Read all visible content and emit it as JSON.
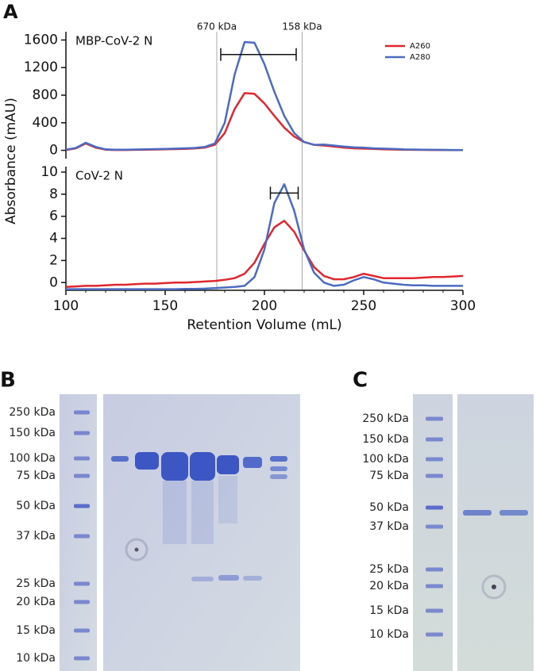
{
  "panels": [
    "A",
    "B",
    "C"
  ],
  "chart_data": [
    {
      "type": "line",
      "title": "MBP-CoV-2 N",
      "ylabel": "Absorbance (mAU)",
      "x": [
        100,
        105,
        110,
        115,
        120,
        125,
        130,
        135,
        140,
        145,
        150,
        155,
        160,
        165,
        170,
        175,
        180,
        185,
        190,
        195,
        200,
        205,
        210,
        215,
        220,
        225,
        230,
        235,
        240,
        245,
        250,
        255,
        260,
        265,
        270,
        275,
        280,
        285,
        290,
        295,
        300
      ],
      "xlim": [
        100,
        300
      ],
      "ylim": [
        -120,
        1720
      ],
      "yticks": [
        0,
        400,
        800,
        1200,
        1600
      ],
      "legend": "upper right",
      "markers": [
        {
          "x": 176,
          "label": "670 kDa"
        },
        {
          "x": 219,
          "label": "158 kDa"
        }
      ],
      "bracket": {
        "x": [
          178,
          216
        ],
        "y": 1390
      },
      "series": [
        {
          "name": "A260",
          "color": "#e0262f",
          "values": [
            5,
            30,
            100,
            40,
            10,
            5,
            5,
            8,
            10,
            12,
            15,
            18,
            22,
            28,
            40,
            80,
            250,
            600,
            830,
            820,
            680,
            500,
            330,
            200,
            120,
            80,
            70,
            55,
            40,
            30,
            25,
            20,
            15,
            12,
            10,
            8,
            6,
            5,
            5,
            4,
            3
          ]
        },
        {
          "name": "A280",
          "color": "#4a6bc0",
          "values": [
            10,
            35,
            110,
            50,
            15,
            10,
            10,
            12,
            15,
            18,
            20,
            25,
            30,
            35,
            50,
            100,
            400,
            1100,
            1570,
            1560,
            1250,
            850,
            500,
            250,
            120,
            80,
            85,
            70,
            55,
            45,
            40,
            30,
            25,
            20,
            15,
            12,
            10,
            8,
            6,
            5,
            4
          ]
        }
      ]
    },
    {
      "type": "line",
      "title": "CoV-2 N",
      "xlabel": "Retention Volume (mL)",
      "x": [
        100,
        105,
        110,
        115,
        120,
        125,
        130,
        135,
        140,
        145,
        150,
        155,
        160,
        165,
        170,
        175,
        180,
        185,
        190,
        195,
        200,
        205,
        210,
        215,
        220,
        225,
        230,
        235,
        240,
        245,
        250,
        255,
        260,
        265,
        270,
        275,
        280,
        285,
        290,
        295,
        300
      ],
      "xlim": [
        100,
        300
      ],
      "ylim": [
        -0.7,
        10.5
      ],
      "xticks": [
        100,
        150,
        200,
        250,
        300
      ],
      "yticks": [
        0,
        2,
        4,
        6,
        8,
        10
      ],
      "bracket": {
        "x": [
          203,
          217
        ],
        "y": 8.1
      },
      "series": [
        {
          "name": "A260",
          "color": "#e0262f",
          "values": [
            -0.4,
            -0.35,
            -0.3,
            -0.3,
            -0.25,
            -0.2,
            -0.2,
            -0.15,
            -0.1,
            -0.1,
            -0.05,
            0,
            0,
            0.05,
            0.1,
            0.15,
            0.25,
            0.4,
            0.8,
            1.8,
            3.5,
            5,
            5.6,
            4.6,
            2.9,
            1.4,
            0.6,
            0.3,
            0.3,
            0.5,
            0.8,
            0.6,
            0.4,
            0.4,
            0.4,
            0.4,
            0.45,
            0.5,
            0.5,
            0.55,
            0.6
          ]
        },
        {
          "name": "A280",
          "color": "#4a6bc0",
          "values": [
            -0.6,
            -0.6,
            -0.6,
            -0.6,
            -0.6,
            -0.6,
            -0.6,
            -0.6,
            -0.6,
            -0.6,
            -0.6,
            -0.6,
            -0.58,
            -0.57,
            -0.55,
            -0.5,
            -0.45,
            -0.4,
            -0.3,
            0.5,
            3,
            7.2,
            8.9,
            6.5,
            3,
            0.9,
            0,
            -0.3,
            -0.2,
            0.2,
            0.5,
            0.3,
            0,
            -0.1,
            -0.2,
            -0.25,
            -0.25,
            -0.3,
            -0.3,
            -0.3,
            -0.3
          ]
        }
      ]
    }
  ],
  "gels": [
    {
      "ladder": [
        "250 kDa",
        "150 kDa",
        "100 kDa",
        "75 kDa",
        "50 kDa",
        "37 kDa",
        "25 kDa",
        "20 kDa",
        "15 kDa",
        "10 kDa"
      ]
    },
    {
      "ladder": [
        "250 kDa",
        "150 kDa",
        "100 kDa",
        "75 kDa",
        "50 kDa",
        "37 kDa",
        "25 kDa",
        "20 kDa",
        "15 kDa",
        "10 kDa"
      ]
    }
  ]
}
